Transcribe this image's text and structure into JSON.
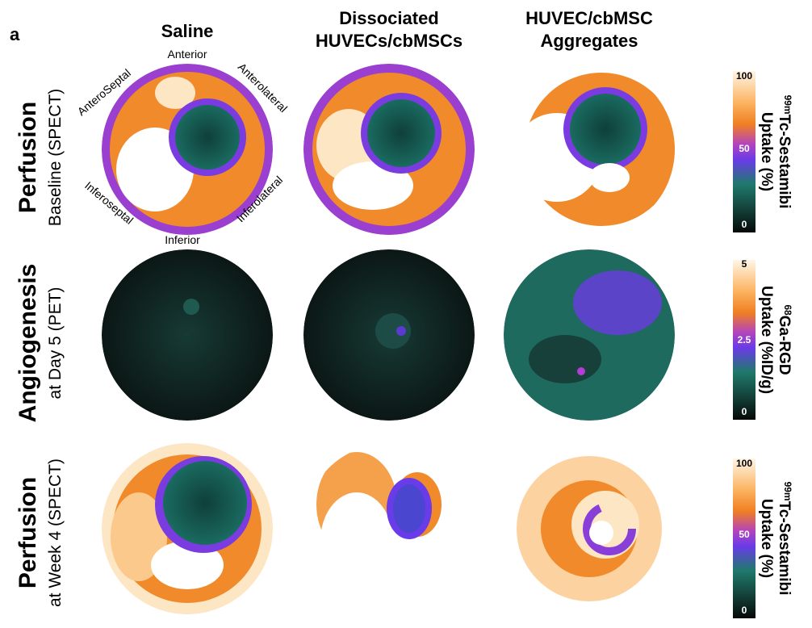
{
  "panel_label": "a",
  "columns": [
    {
      "lines": [
        "Saline"
      ]
    },
    {
      "lines": [
        "Dissociated",
        "HUVECs/cbMSCs"
      ]
    },
    {
      "lines": [
        "HUVEC/cbMSC",
        "Aggregates"
      ]
    }
  ],
  "rows": [
    {
      "title": "Perfusion",
      "subtitle": "Baseline (SPECT)"
    },
    {
      "title": "Angiogenesis",
      "subtitle": "at Day 5 (PET)"
    },
    {
      "title": "Perfusion",
      "subtitle": "at Week 4 (SPECT)"
    }
  ],
  "segments": {
    "anterior": "Anterior",
    "anteroseptal": "AnteroSeptal",
    "anterolateral": "Anterolateral",
    "inferoseptal": "Inferoseptal",
    "inferolateral": "Inferolateral",
    "inferior": "Inferior"
  },
  "colorbars": [
    {
      "isotope": "99m",
      "tracer": "Tc-Sestamibi",
      "unit": "Uptake (%)",
      "ticks": [
        100,
        50,
        0
      ]
    },
    {
      "isotope": "68",
      "tracer": "Ga-RGD",
      "unit": "Uptake (%ID/g)",
      "ticks": [
        5,
        2.5,
        0
      ]
    },
    {
      "isotope": "99m",
      "tracer": "Tc-Sestamibi",
      "unit": "Uptake (%)",
      "ticks": [
        100,
        50,
        0
      ]
    }
  ]
}
